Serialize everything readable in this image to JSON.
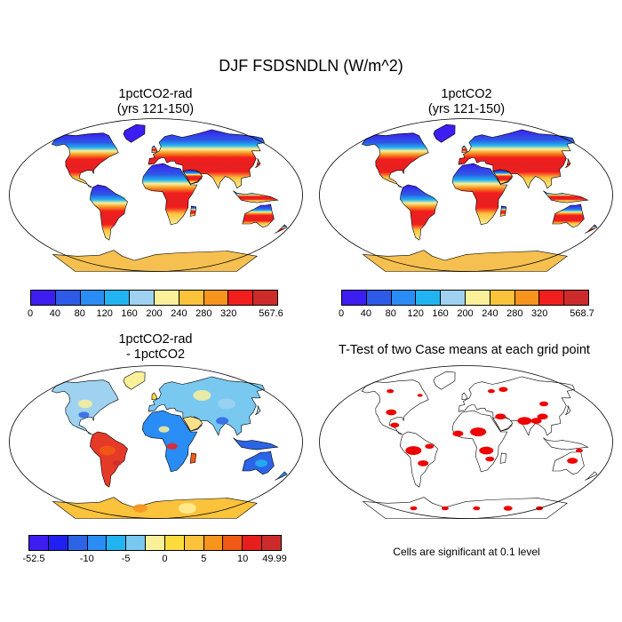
{
  "main_title": "DJF FSDSNDLN (W/m^2)",
  "panels": [
    {
      "title_line1": "1pctCO2-rad",
      "title_line2": "(yrs 121-150)",
      "colorbar": {
        "colors": [
          "#3c1ef0",
          "#2d5ae6",
          "#2a8cf5",
          "#21b4f0",
          "#9fd2f0",
          "#fbf09a",
          "#fbc23c",
          "#f6941e",
          "#f21e1e",
          "#cd2b2b"
        ],
        "labels": [
          "0",
          "40",
          "80",
          "120",
          "160",
          "200",
          "240",
          "280",
          "320",
          "567.6"
        ]
      }
    },
    {
      "title_line1": "1pctCO2",
      "title_line2": "(yrs 121-150)",
      "colorbar": {
        "colors": [
          "#3c1ef0",
          "#2d5ae6",
          "#2a8cf5",
          "#21b4f0",
          "#9fd2f0",
          "#fbf09a",
          "#fbc23c",
          "#f6941e",
          "#f21e1e",
          "#cd2b2b"
        ],
        "labels": [
          "0",
          "40",
          "80",
          "120",
          "160",
          "200",
          "240",
          "280",
          "320",
          "568.7"
        ]
      }
    },
    {
      "title_line1": "1pctCO2-rad",
      "title_line2": "- 1pctCO2",
      "colorbar": {
        "colors": [
          "#3c1ef0",
          "#2020f0",
          "#2d64e6",
          "#2a8cf5",
          "#21b4f0",
          "#78c8f0",
          "#fbf09a",
          "#fbdc3c",
          "#fbc23c",
          "#f6941e",
          "#f05a14",
          "#e61e1e",
          "#cd2b2b"
        ],
        "labels": [
          "-52.5",
          "-10",
          "-5",
          "0",
          "5",
          "10",
          "49.99"
        ]
      }
    },
    {
      "title_line1": "T-Test of two Case means at each grid point",
      "note": "Cells are significant at 0.1 level"
    }
  ],
  "colors": {
    "significance": "#ee0000",
    "coastline": "#000000"
  }
}
